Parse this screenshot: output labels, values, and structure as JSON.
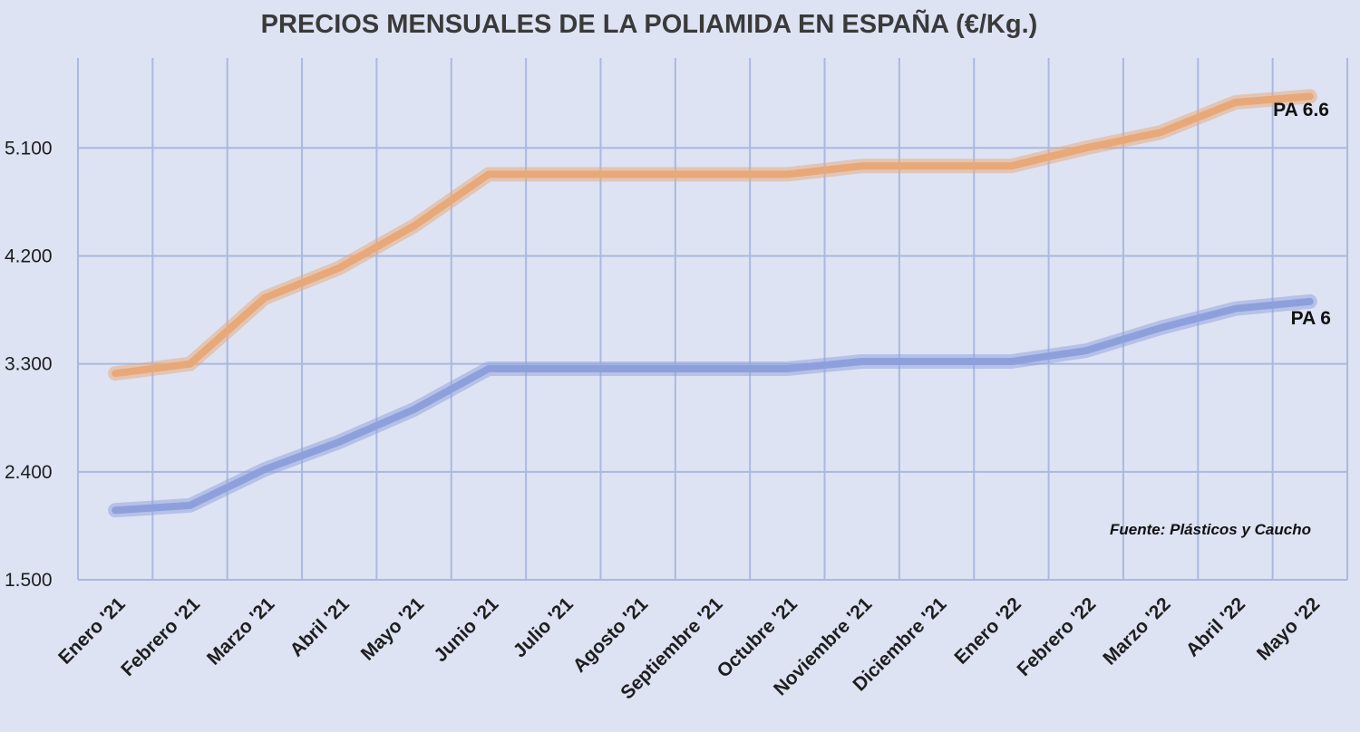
{
  "chart_data": {
    "type": "line",
    "title": "PRECIOS MENSUALES DE LA POLIAMIDA EN ESPAÑA (€/Kg.)",
    "categories": [
      "Enero '21",
      "Febrero '21",
      "Marzo '21",
      "Abril '21",
      "Mayo '21",
      "Junio '21",
      "Julio '21",
      "Agosto '21",
      "Septiembre '21",
      "Octubre '21",
      "Noviembre '21",
      "Diciembre '21",
      "Enero '22",
      "Febrero '22",
      "Marzo '22",
      "Abril '22",
      "Mayo '22"
    ],
    "y_ticks": [
      "1.500",
      "2.400",
      "3.300",
      "4.200",
      "5.100"
    ],
    "ylim": [
      1500,
      5850
    ],
    "grid": true,
    "series": [
      {
        "name": "PA 6.6",
        "color": "#e8a878",
        "values": [
          3220,
          3300,
          3850,
          4100,
          4450,
          4880,
          4880,
          4880,
          4880,
          4880,
          4950,
          4950,
          4950,
          5100,
          5230,
          5480,
          5530
        ]
      },
      {
        "name": "PA 6",
        "color": "#8ea0dc",
        "values": [
          2080,
          2120,
          2420,
          2650,
          2920,
          3260,
          3260,
          3260,
          3260,
          3260,
          3320,
          3320,
          3320,
          3410,
          3600,
          3760,
          3820
        ]
      }
    ],
    "annotations": [
      "Fuente: Plásticos y Caucho"
    ]
  }
}
